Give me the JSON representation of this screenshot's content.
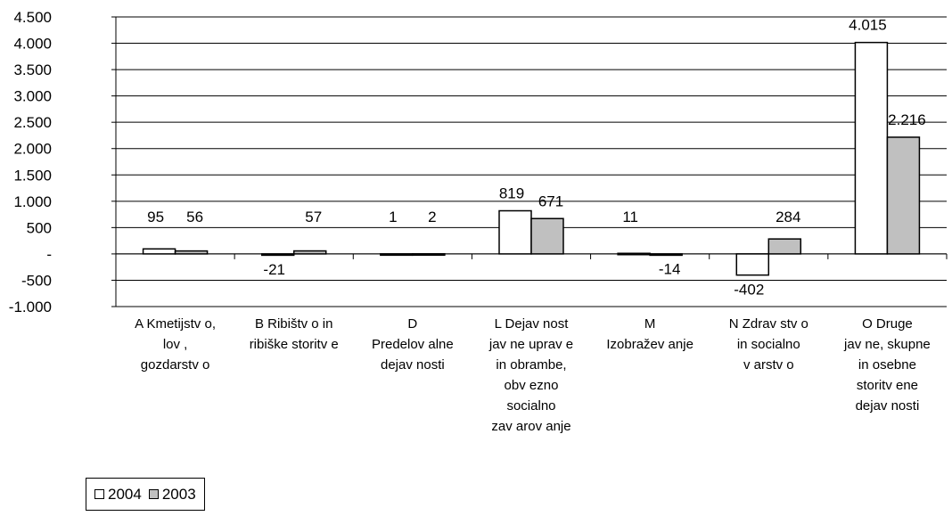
{
  "chart_data": {
    "type": "bar",
    "categories": [
      [
        "A Kmetijstv o,",
        "lov ,",
        "gozdarstv o"
      ],
      [
        "B Ribištv o in",
        "ribiške storitv e"
      ],
      [
        "D",
        "Predelov alne",
        "dejav nosti"
      ],
      [
        "L Dejav nost",
        "jav ne uprav e",
        "in obrambe,",
        "obv ezno",
        "socialno",
        "zav arov anje"
      ],
      [
        "M",
        "Izobražev anje"
      ],
      [
        "N Zdrav stv o",
        "in socialno",
        "v arstv o"
      ],
      [
        "O Druge",
        "jav ne, skupne",
        "in osebne",
        "storitv ene",
        "dejav nosti"
      ]
    ],
    "series": [
      {
        "name": "2004",
        "color": "#ffffff",
        "values": [
          95,
          -21,
          1,
          819,
          11,
          -402,
          4015
        ]
      },
      {
        "name": "2003",
        "color": "#c0c0c0",
        "values": [
          56,
          57,
          2,
          671,
          -14,
          284,
          2216
        ]
      }
    ],
    "data_labels": [
      [
        "95",
        "-21",
        "1",
        "819",
        "11",
        "-402",
        "4.015"
      ],
      [
        "56",
        "57",
        "2",
        "671",
        "-14",
        "284",
        "2.216"
      ]
    ],
    "yticks": [
      4500,
      4000,
      3500,
      3000,
      2500,
      2000,
      1500,
      1000,
      500,
      0,
      -500,
      -1000
    ],
    "ytick_labels": [
      "4.500",
      "4.000",
      "3.500",
      "3.000",
      "2.500",
      "2.000",
      "1.500",
      "1.000",
      "500",
      "-",
      "-500",
      "-1.000"
    ],
    "ylim": [
      -1000,
      4500
    ],
    "grid": true,
    "legend_position": "bottom-left"
  },
  "legend": {
    "items": [
      {
        "label": "2004",
        "color": "#ffffff"
      },
      {
        "label": "2003",
        "color": "#c0c0c0"
      }
    ]
  }
}
